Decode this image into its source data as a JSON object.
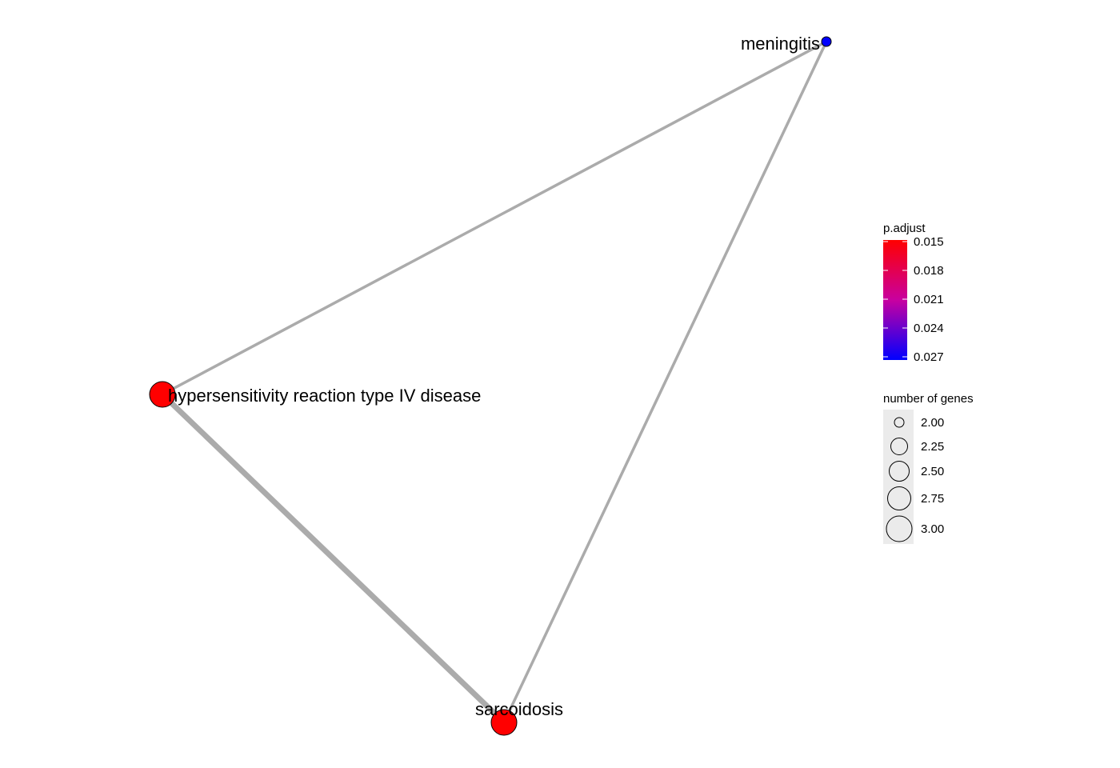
{
  "colors": {
    "edge": "#ababab",
    "low_p": "#ff0000",
    "high_p": "#0000ff",
    "legend_bg": "#ebebeb",
    "node_stroke": "#000000"
  },
  "nodes": [
    {
      "id": "hypersensitivity",
      "label": "hypersensitivity reaction type IV disease",
      "p_adjust": 0.015,
      "gene_count": 3,
      "color": "#ff0000"
    },
    {
      "id": "meningitis",
      "label": "meningitis",
      "p_adjust": 0.027,
      "gene_count": 2,
      "color": "#0000ff"
    },
    {
      "id": "sarcoidosis",
      "label": "sarcoidosis",
      "p_adjust": 0.015,
      "gene_count": 3,
      "color": "#ff0000"
    }
  ],
  "edges": [
    {
      "from": "hypersensitivity",
      "to": "meningitis",
      "weight": 1
    },
    {
      "from": "meningitis",
      "to": "sarcoidosis",
      "weight": 1
    },
    {
      "from": "hypersensitivity",
      "to": "sarcoidosis",
      "weight": 2
    }
  ],
  "legend": {
    "color": {
      "title": "p.adjust",
      "ticks": [
        "0.015",
        "0.018",
        "0.021",
        "0.024",
        "0.027"
      ]
    },
    "size": {
      "title": "number of genes",
      "ticks": [
        "2.00",
        "2.25",
        "2.50",
        "2.75",
        "3.00"
      ]
    }
  }
}
